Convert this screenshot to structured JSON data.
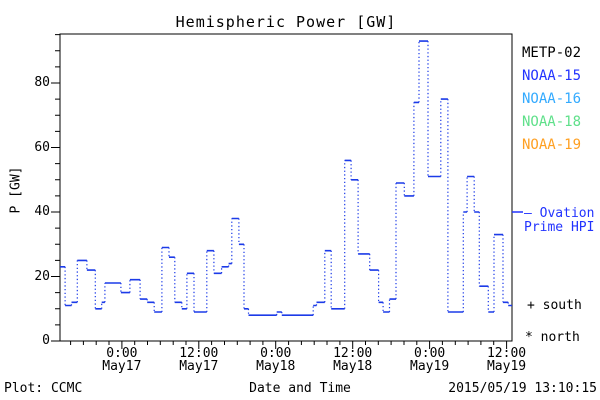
{
  "title": "Hemispheric Power [GW]",
  "footer": {
    "left": "Plot: CCMC",
    "center": "Date and Time",
    "right": "2015/05/19 13:10:15"
  },
  "legend": {
    "satellites": [
      {
        "label": "METP-02",
        "color": "#000000"
      },
      {
        "label": "NOAA-15",
        "color": "#2233FF"
      },
      {
        "label": "NOAA-16",
        "color": "#33AAFF"
      },
      {
        "label": "NOAA-18",
        "color": "#5FE08A"
      },
      {
        "label": "NOAA-19",
        "color": "#FFA022"
      }
    ]
  },
  "annotations": {
    "ovation_line1": "— Ovation",
    "ovation_line2": "Prime HPI",
    "ovation_color": "#2233FF",
    "south": "+ south",
    "north": "* north"
  },
  "chart_data": {
    "type": "line",
    "subtype": "step-dotted",
    "title": "Hemispheric Power [GW]",
    "xlabel": "Date and Time",
    "ylabel": "P [GW]",
    "ylim": [
      0,
      95.2
    ],
    "y_major_ticks": [
      0,
      20,
      40,
      60,
      80
    ],
    "y_major_step": 20,
    "y_minor_step": 5,
    "x_hours_span": 70.5,
    "x_minor_step_hours": 2,
    "x_major_ticks": [
      {
        "hour": 9.65,
        "time": "0:00",
        "date": "May17"
      },
      {
        "hour": 21.65,
        "time": "12:00",
        "date": "May17"
      },
      {
        "hour": 33.65,
        "time": "0:00",
        "date": "May18"
      },
      {
        "hour": 45.65,
        "time": "12:00",
        "date": "May18"
      },
      {
        "hour": 57.65,
        "time": "0:00",
        "date": "May19"
      },
      {
        "hour": 69.65,
        "time": "12:00",
        "date": "May19"
      }
    ],
    "line_color": "#1C3BE8",
    "ovation_sample_gw": 40,
    "series": [
      {
        "name": "Ovation Prime HPI",
        "units": "GW",
        "steps_hour_gw": [
          [
            0,
            23
          ],
          [
            0.8,
            11
          ],
          [
            1.8,
            12
          ],
          [
            2.7,
            25
          ],
          [
            4.2,
            22
          ],
          [
            5.5,
            10
          ],
          [
            6.5,
            12
          ],
          [
            7.0,
            18
          ],
          [
            9.5,
            15
          ],
          [
            10.9,
            19
          ],
          [
            12.5,
            13
          ],
          [
            13.6,
            12
          ],
          [
            14.7,
            9
          ],
          [
            15.9,
            29
          ],
          [
            17.0,
            26
          ],
          [
            17.9,
            12
          ],
          [
            19.0,
            10
          ],
          [
            19.8,
            21
          ],
          [
            20.9,
            9
          ],
          [
            22.9,
            28
          ],
          [
            24.0,
            21
          ],
          [
            25.2,
            23
          ],
          [
            26.3,
            24
          ],
          [
            26.8,
            38
          ],
          [
            27.9,
            30
          ],
          [
            28.7,
            10
          ],
          [
            29.4,
            8
          ],
          [
            33.8,
            9
          ],
          [
            34.6,
            8
          ],
          [
            39.5,
            11
          ],
          [
            40.0,
            12
          ],
          [
            41.3,
            28
          ],
          [
            42.3,
            10
          ],
          [
            44.4,
            56
          ],
          [
            45.4,
            50
          ],
          [
            46.5,
            27
          ],
          [
            48.3,
            22
          ],
          [
            49.7,
            12
          ],
          [
            50.4,
            9
          ],
          [
            51.4,
            13
          ],
          [
            52.4,
            49
          ],
          [
            53.7,
            45
          ],
          [
            55.2,
            74
          ],
          [
            56.0,
            93
          ],
          [
            57.4,
            51
          ],
          [
            59.4,
            75
          ],
          [
            60.5,
            9
          ],
          [
            62.9,
            40
          ],
          [
            63.5,
            51
          ],
          [
            64.6,
            40
          ],
          [
            65.4,
            17
          ],
          [
            66.8,
            9
          ],
          [
            67.7,
            33
          ],
          [
            69.1,
            12
          ],
          [
            69.9,
            11
          ]
        ]
      }
    ]
  }
}
